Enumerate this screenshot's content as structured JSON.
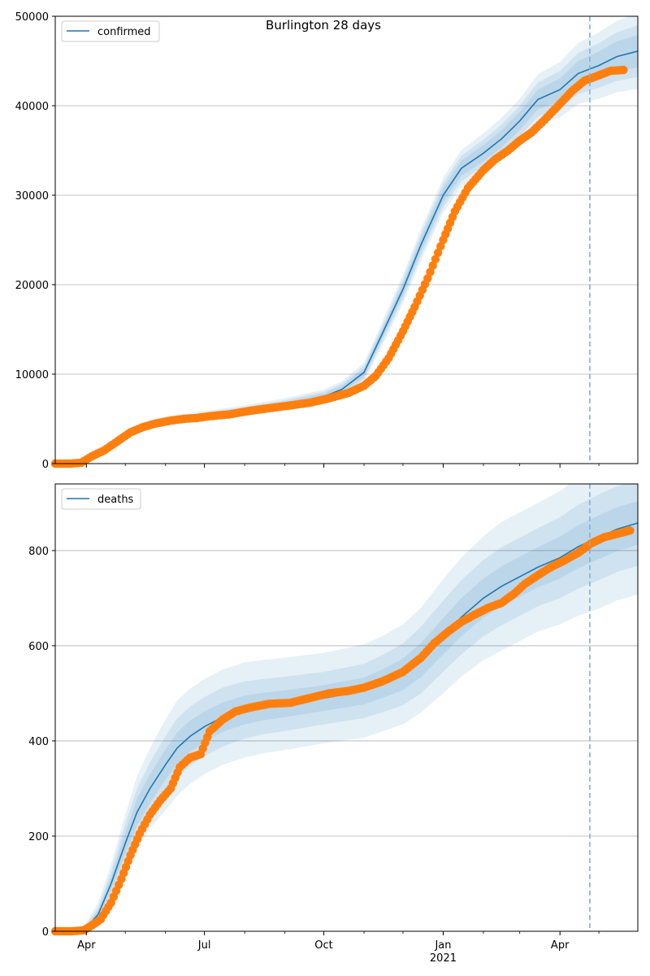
{
  "figure": {
    "title": "Burlington 28 days"
  },
  "colors": {
    "model_line": "#1f77b4",
    "observed_points": "#ff7f0e",
    "band": "#1f77b4",
    "forecast_marker": "#7fb0d5",
    "grid": "#b0b0b0"
  },
  "x_axis": {
    "start": "2020-03-08",
    "end": "2021-05-31",
    "forecast_start": "2021-04-24",
    "tick_labels": [
      {
        "date": "2020-04-01",
        "label": "Apr",
        "sub": ""
      },
      {
        "date": "2020-07-01",
        "label": "Jul",
        "sub": ""
      },
      {
        "date": "2020-10-01",
        "label": "Oct",
        "sub": ""
      },
      {
        "date": "2021-01-01",
        "label": "Jan",
        "sub": "2021"
      },
      {
        "date": "2021-04-01",
        "label": "Apr",
        "sub": ""
      }
    ],
    "minor_ticks": [
      "2020-05-01",
      "2020-06-01",
      "2020-08-01",
      "2020-09-01",
      "2020-11-01",
      "2020-12-01",
      "2021-02-01",
      "2021-03-01",
      "2021-05-01"
    ]
  },
  "chart_data": [
    {
      "type": "line",
      "legend": [
        "confirmed"
      ],
      "legend_position": "top-left",
      "grid": "y",
      "ylim": [
        0,
        50000
      ],
      "yticks": [
        0,
        10000,
        20000,
        30000,
        40000,
        50000
      ],
      "ytick_labels": [
        "0",
        "10000",
        "20000",
        "30000",
        "40000",
        "50000"
      ],
      "model": {
        "dates": [
          "2020-03-08",
          "2020-03-25",
          "2020-04-01",
          "2020-04-15",
          "2020-05-01",
          "2020-05-15",
          "2020-06-01",
          "2020-06-15",
          "2020-07-01",
          "2020-08-01",
          "2020-09-01",
          "2020-10-01",
          "2020-10-15",
          "2020-11-01",
          "2020-11-15",
          "2020-12-01",
          "2020-12-15",
          "2021-01-01",
          "2021-01-15",
          "2021-02-01",
          "2021-02-15",
          "2021-03-01",
          "2021-03-15",
          "2021-04-01",
          "2021-04-15",
          "2021-05-01",
          "2021-05-15",
          "2021-05-31"
        ],
        "values": [
          0,
          100,
          500,
          1700,
          3300,
          4200,
          4800,
          5000,
          5300,
          5900,
          6600,
          7500,
          8300,
          10200,
          14500,
          19500,
          24500,
          30000,
          33000,
          34700,
          36300,
          38300,
          40700,
          41800,
          43600,
          44500,
          45500,
          46100
        ]
      },
      "bands": [
        {
          "level": "outer",
          "opacity": 0.11,
          "spread": [
            0,
            40,
            150,
            300,
            400,
            450,
            500,
            520,
            550,
            620,
            700,
            800,
            900,
            1100,
            1350,
            1600,
            1800,
            1950,
            2050,
            2200,
            2350,
            2500,
            2800,
            3100,
            3400,
            3700,
            4000,
            4200
          ]
        },
        {
          "level": "middle",
          "opacity": 0.11,
          "spread": [
            0,
            25,
            100,
            200,
            280,
            320,
            350,
            360,
            380,
            430,
            480,
            550,
            620,
            750,
            900,
            1100,
            1250,
            1350,
            1420,
            1500,
            1600,
            1700,
            1900,
            2100,
            2300,
            2500,
            2700,
            2900
          ]
        },
        {
          "level": "inner",
          "opacity": 0.11,
          "spread": [
            0,
            15,
            60,
            120,
            170,
            190,
            210,
            220,
            230,
            260,
            290,
            330,
            370,
            450,
            550,
            650,
            750,
            800,
            850,
            900,
            950,
            1000,
            1100,
            1250,
            1400,
            1550,
            1700,
            1800
          ]
        }
      ],
      "observed": {
        "dates": [
          "2020-03-08",
          "2020-03-20",
          "2020-03-28",
          "2020-04-05",
          "2020-04-15",
          "2020-04-25",
          "2020-05-05",
          "2020-05-15",
          "2020-05-25",
          "2020-06-05",
          "2020-06-15",
          "2020-06-25",
          "2020-07-05",
          "2020-07-20",
          "2020-08-05",
          "2020-08-20",
          "2020-09-05",
          "2020-09-20",
          "2020-10-05",
          "2020-10-20",
          "2020-11-01",
          "2020-11-10",
          "2020-11-20",
          "2020-12-01",
          "2020-12-10",
          "2020-12-20",
          "2021-01-01",
          "2021-01-10",
          "2021-01-20",
          "2021-02-01",
          "2021-02-10",
          "2021-02-20",
          "2021-03-01",
          "2021-03-10",
          "2021-03-20",
          "2021-04-01",
          "2021-04-10",
          "2021-04-20",
          "2021-05-01",
          "2021-05-10",
          "2021-05-20"
        ],
        "values": [
          0,
          0,
          100,
          800,
          1500,
          2500,
          3500,
          4100,
          4500,
          4800,
          5000,
          5100,
          5300,
          5500,
          5900,
          6200,
          6500,
          6800,
          7300,
          7900,
          8700,
          9800,
          11800,
          14800,
          17500,
          20700,
          25000,
          28200,
          30800,
          32800,
          34000,
          35000,
          36100,
          37000,
          38400,
          40200,
          41600,
          42800,
          43400,
          43900,
          44000
        ]
      }
    },
    {
      "type": "line",
      "legend": [
        "deaths"
      ],
      "legend_position": "top-left",
      "grid": "y",
      "ylim": [
        0,
        940
      ],
      "yticks": [
        0,
        200,
        400,
        600,
        800
      ],
      "ytick_labels": [
        "0",
        "200",
        "400",
        "600",
        "800"
      ],
      "model": {
        "dates": [
          "2020-03-08",
          "2020-03-25",
          "2020-04-01",
          "2020-04-10",
          "2020-04-20",
          "2020-05-01",
          "2020-05-10",
          "2020-05-20",
          "2020-06-01",
          "2020-06-10",
          "2020-06-20",
          "2020-07-01",
          "2020-07-15",
          "2020-08-01",
          "2020-08-15",
          "2020-09-01",
          "2020-10-01",
          "2020-11-01",
          "2020-11-15",
          "2020-12-01",
          "2020-12-15",
          "2021-01-01",
          "2021-01-15",
          "2021-02-01",
          "2021-02-15",
          "2021-03-01",
          "2021-03-15",
          "2021-04-01",
          "2021-04-15",
          "2021-05-01",
          "2021-05-15",
          "2021-05-31"
        ],
        "values": [
          0,
          0,
          8,
          35,
          100,
          185,
          250,
          300,
          350,
          385,
          410,
          430,
          450,
          465,
          472,
          478,
          490,
          505,
          520,
          540,
          570,
          620,
          660,
          700,
          725,
          745,
          765,
          785,
          808,
          828,
          845,
          858
        ]
      },
      "bands": [
        {
          "level": "outer",
          "opacity": 0.11,
          "spread": [
            0,
            2,
            10,
            25,
            40,
            60,
            75,
            85,
            95,
            100,
            100,
            100,
            100,
            100,
            98,
            97,
            95,
            98,
            100,
            105,
            110,
            120,
            125,
            130,
            135,
            135,
            135,
            140,
            145,
            150,
            150,
            150
          ]
        },
        {
          "level": "middle",
          "opacity": 0.11,
          "spread": [
            0,
            1,
            6,
            15,
            25,
            40,
            50,
            55,
            60,
            62,
            62,
            62,
            62,
            60,
            58,
            57,
            55,
            57,
            60,
            65,
            70,
            75,
            78,
            80,
            82,
            82,
            82,
            85,
            88,
            90,
            90,
            90
          ]
        },
        {
          "level": "inner",
          "opacity": 0.11,
          "spread": [
            0,
            1,
            3,
            8,
            14,
            22,
            28,
            30,
            32,
            33,
            33,
            32,
            31,
            30,
            29,
            28,
            27,
            28,
            30,
            33,
            36,
            38,
            40,
            41,
            42,
            42,
            42,
            44,
            45,
            46,
            46,
            46
          ]
        }
      ],
      "observed": {
        "dates": [
          "2020-03-08",
          "2020-03-20",
          "2020-03-30",
          "2020-04-05",
          "2020-04-12",
          "2020-04-20",
          "2020-04-28",
          "2020-05-05",
          "2020-05-12",
          "2020-05-20",
          "2020-05-28",
          "2020-06-05",
          "2020-06-12",
          "2020-06-20",
          "2020-06-28",
          "2020-07-05",
          "2020-07-15",
          "2020-07-25",
          "2020-08-05",
          "2020-08-20",
          "2020-09-05",
          "2020-09-20",
          "2020-10-05",
          "2020-10-20",
          "2020-11-01",
          "2020-11-15",
          "2020-12-01",
          "2020-12-15",
          "2020-12-25",
          "2021-01-05",
          "2021-01-15",
          "2021-01-25",
          "2021-02-05",
          "2021-02-15",
          "2021-02-25",
          "2021-03-05",
          "2021-03-15",
          "2021-03-25",
          "2021-04-05",
          "2021-04-15",
          "2021-04-25",
          "2021-05-05",
          "2021-05-15",
          "2021-05-25"
        ],
        "values": [
          0,
          0,
          2,
          12,
          25,
          60,
          110,
          160,
          205,
          245,
          275,
          300,
          345,
          365,
          372,
          420,
          445,
          462,
          470,
          478,
          480,
          490,
          500,
          505,
          512,
          525,
          545,
          575,
          605,
          630,
          650,
          665,
          680,
          690,
          710,
          730,
          748,
          765,
          780,
          795,
          815,
          828,
          835,
          842
        ]
      }
    }
  ]
}
